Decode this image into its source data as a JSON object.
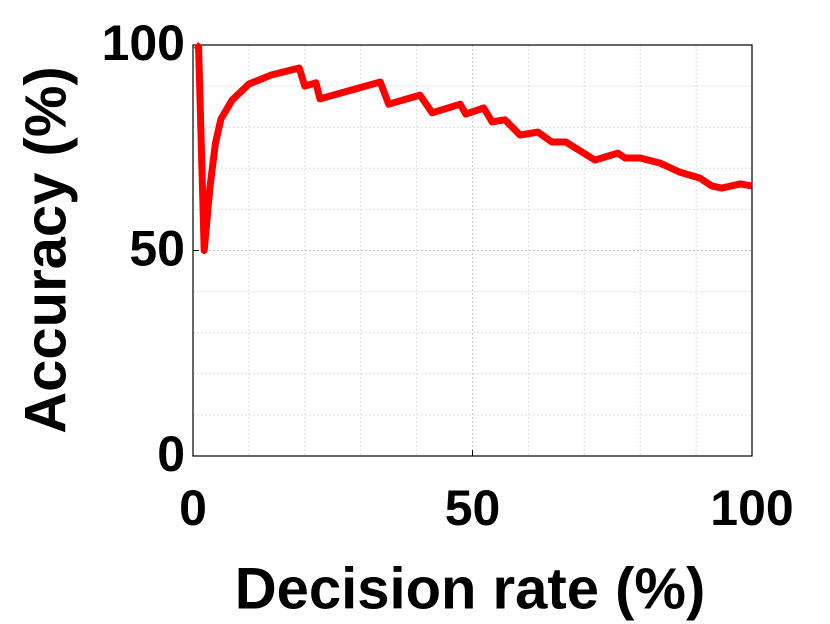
{
  "chart_data": {
    "type": "line",
    "x_label": "Decision rate (%)",
    "y_label": "Accuracy (%)",
    "x": [
      0.5,
      1,
      2,
      3,
      4,
      5,
      7,
      10,
      14,
      19,
      20,
      22,
      22.7,
      33.5,
      35,
      40.6,
      42.8,
      47.8,
      48.8,
      52,
      53.5,
      55.8,
      58.5,
      61.7,
      64.2,
      66.7,
      71.9,
      76,
      77.3,
      80,
      83.5,
      87,
      90.7,
      92.8,
      94.6,
      97.9,
      100
    ],
    "series": [
      {
        "color": "#ff0000",
        "values": [
          100,
          99.5,
          50,
          65,
          76,
          82,
          86.6,
          90.5,
          92.7,
          94.4,
          90,
          90.8,
          86.9,
          91,
          85.6,
          87.8,
          83.5,
          85.6,
          83.2,
          84.7,
          81.3,
          81.8,
          78.1,
          78.8,
          76.4,
          76.4,
          72,
          73.7,
          72.5,
          72.5,
          71.3,
          69.1,
          67.6,
          65.7,
          65.2,
          66.2,
          65.7
        ]
      }
    ],
    "xlim": [
      0,
      100
    ],
    "ylim": [
      0,
      100
    ],
    "xticks": [
      0,
      50,
      100
    ],
    "yticks": [
      0,
      50,
      100
    ],
    "grid": true
  }
}
